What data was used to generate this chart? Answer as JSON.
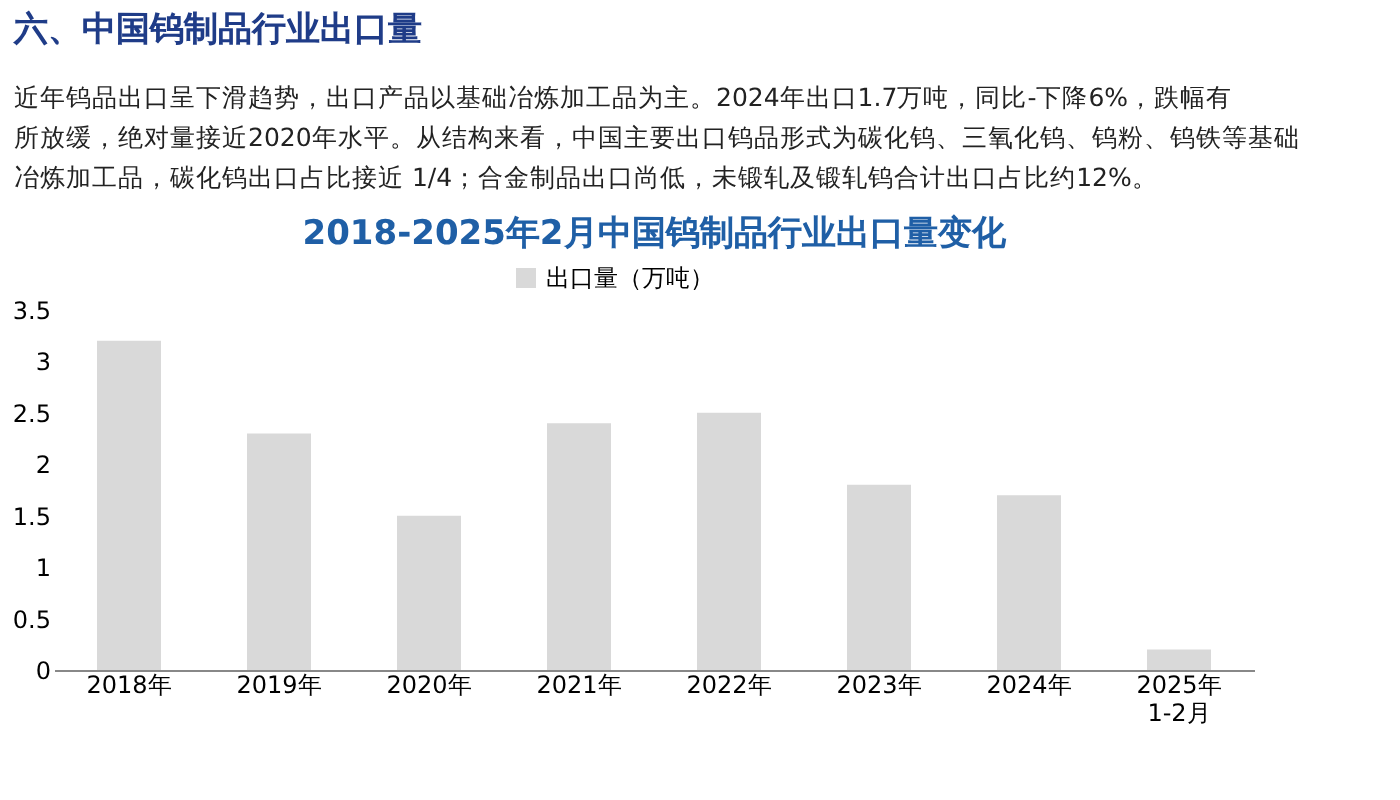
{
  "chart_data": {
    "type": "bar",
    "title": "2018-2025年2月中国钨制品行业出口量变化",
    "annotations": [
      "六、中国钨制品行业出口量",
      "近年钨品出口呈下滑趋势，出口产品以基础冶炼加工品为主。2024年出口1.7万吨，同比-下降6%，跌幅有所放缓，绝对量接近2020年水平。从结构来看，中国主要出口钨品形式为碳化钨、三氧化钨、钨粉、钨铁等基础冶炼加工品，碳化钨出口占比接近 1/4；合金制品出口尚低，未锻轧及锻轧钨合计出口占比约12%。"
    ],
    "categories": [
      "2018年",
      "2019年",
      "2020年",
      "2021年",
      "2022年",
      "2023年",
      "2024年",
      "2025年\n1-2月"
    ],
    "series": [
      {
        "name": "出口量（万吨）",
        "color": "#d9d9d9",
        "values": [
          3.2,
          2.3,
          1.5,
          2.4,
          2.5,
          1.8,
          1.7,
          0.2
        ]
      }
    ],
    "ylim": [
      0,
      3.5
    ],
    "yticks": [
      {
        "value": 0,
        "label": "0"
      },
      0.5,
      {
        "value": 1,
        "label": "1"
      },
      1.5,
      {
        "value": 2,
        "label": "2"
      },
      2.5,
      {
        "value": 3,
        "label": "3"
      },
      3.5
    ],
    "grid": false,
    "legend": "top"
  }
}
